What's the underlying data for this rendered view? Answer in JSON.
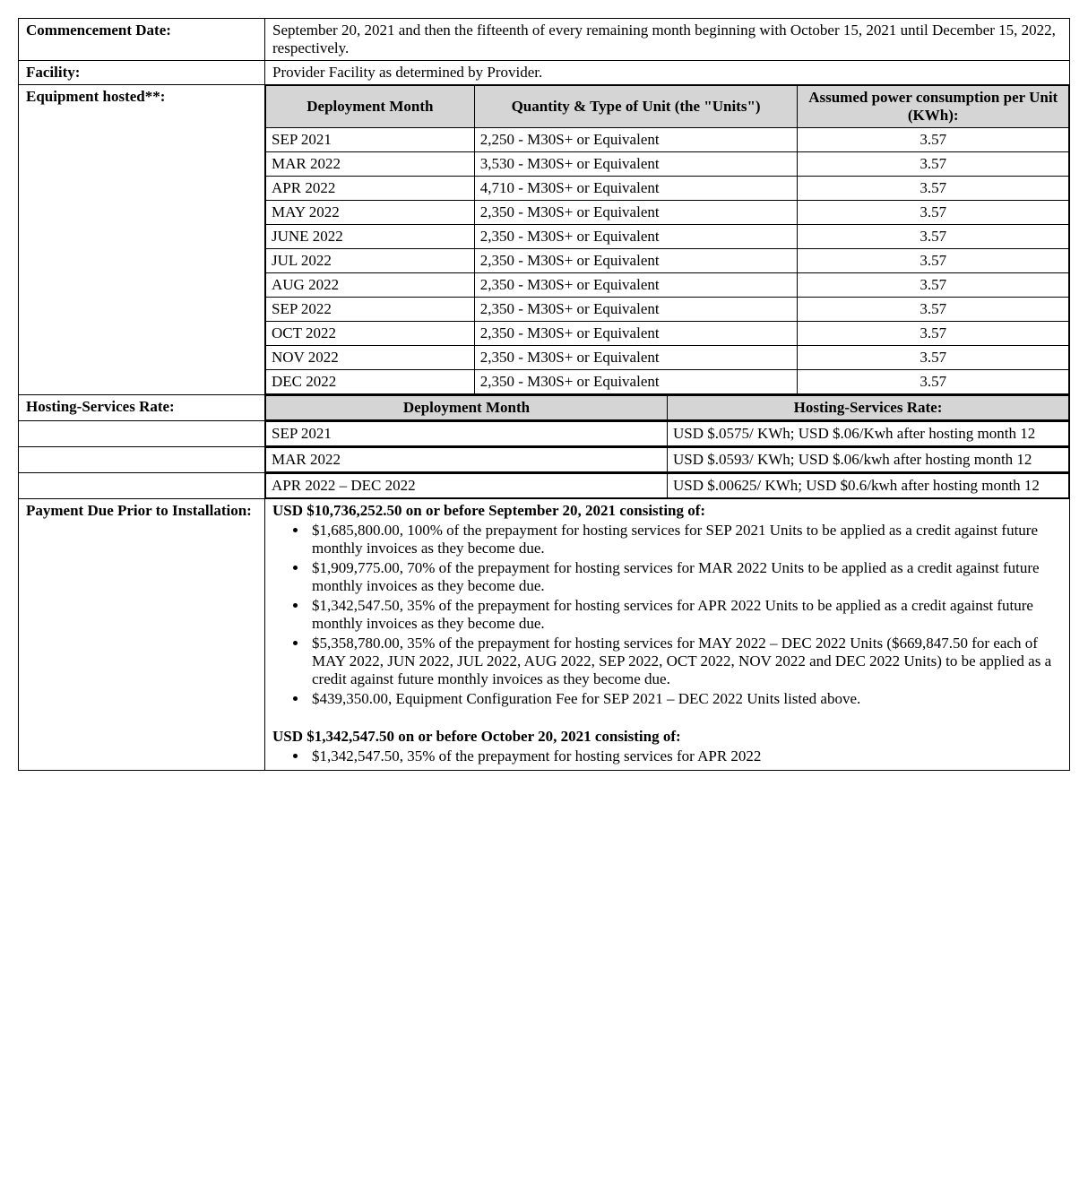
{
  "colors": {
    "header_bg": "#d5d5d5",
    "border": "#000000",
    "text": "#000000",
    "background": "#ffffff"
  },
  "typography": {
    "family": "Times New Roman",
    "base_size_pt": 13,
    "bold_labels": true
  },
  "rows": {
    "commencement": {
      "label": "Commencement Date:",
      "value": "September 20, 2021 and then the fifteenth of every remaining month beginning with October 15, 2021 until December 15, 2022, respectively."
    },
    "facility": {
      "label": "Facility:",
      "value": "Provider Facility as determined by Provider."
    },
    "equipment": {
      "label": "Equipment hosted**:",
      "headers": {
        "month": "Deployment Month",
        "qty": "Quantity & Type of Unit (the \"Units\")",
        "power": "Assumed power consumption per Unit (KWh):"
      },
      "items": [
        {
          "month": "SEP 2021",
          "qty": "2,250 - M30S+ or Equivalent",
          "power": "3.57"
        },
        {
          "month": "MAR 2022",
          "qty": "3,530 - M30S+ or Equivalent",
          "power": "3.57"
        },
        {
          "month": "APR 2022",
          "qty": "4,710 - M30S+ or Equivalent",
          "power": "3.57"
        },
        {
          "month": "MAY 2022",
          "qty": "2,350 - M30S+ or Equivalent",
          "power": "3.57"
        },
        {
          "month": "JUNE 2022",
          "qty": "2,350 - M30S+ or Equivalent",
          "power": "3.57"
        },
        {
          "month": "JUL 2022",
          "qty": "2,350 - M30S+ or Equivalent",
          "power": "3.57"
        },
        {
          "month": "AUG 2022",
          "qty": "2,350 - M30S+ or Equivalent",
          "power": "3.57"
        },
        {
          "month": "SEP 2022",
          "qty": "2,350 - M30S+ or Equivalent",
          "power": "3.57"
        },
        {
          "month": "OCT 2022",
          "qty": "2,350 - M30S+ or Equivalent",
          "power": "3.57"
        },
        {
          "month": "NOV 2022",
          "qty": "2,350 - M30S+ or Equivalent",
          "power": "3.57"
        },
        {
          "month": "DEC 2022",
          "qty": "2,350 - M30S+ or Equivalent",
          "power": "3.57"
        }
      ]
    },
    "hosting_rate": {
      "label": "Hosting-Services Rate:",
      "headers": {
        "month": "Deployment Month",
        "rate": "Hosting-Services Rate:"
      },
      "items": [
        {
          "month": "SEP 2021",
          "rate": "USD $.0575/ KWh; USD $.06/Kwh after hosting month 12"
        },
        {
          "month": "MAR 2022",
          "rate": "USD $.0593/ KWh; USD $.06/kwh after hosting month 12"
        },
        {
          "month": "APR 2022 – DEC 2022",
          "rate": "USD $.00625/ KWh; USD $0.6/kwh after hosting month 12"
        }
      ]
    },
    "payment": {
      "label": "Payment Due Prior to Installation:",
      "heading1": "USD $10,736,252.50 on or before September 20, 2021 consisting of:",
      "bullets1": [
        "$1,685,800.00, 100% of the prepayment for hosting services for SEP 2021 Units to be applied as a credit against future monthly invoices as they become due.",
        "$1,909,775.00, 70% of the prepayment for hosting services for MAR 2022 Units to be applied as a credit against future monthly invoices as they become due.",
        "$1,342,547.50, 35% of the prepayment for hosting services for APR 2022 Units to be applied as a credit against future monthly invoices as they become due.",
        "$5,358,780.00, 35% of the prepayment for hosting services for MAY 2022 – DEC 2022 Units ($669,847.50 for each of MAY 2022, JUN 2022, JUL 2022, AUG 2022, SEP 2022, OCT 2022, NOV 2022 and DEC 2022 Units) to be applied as a credit against future monthly invoices as they become due.",
        "$439,350.00, Equipment Configuration Fee for SEP 2021 – DEC 2022 Units listed above."
      ],
      "heading2": "USD $1,342,547.50 on or before October 20, 2021 consisting of:",
      "bullets2": [
        "$1,342,547.50, 35% of the prepayment for hosting services for APR 2022"
      ]
    }
  }
}
